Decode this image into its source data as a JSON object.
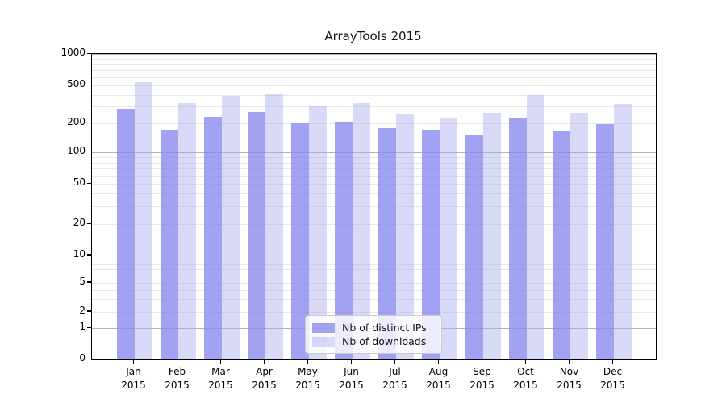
{
  "title": "ArrayTools 2015",
  "colors": {
    "series_ips": "rgba(136,136,238,0.78)",
    "series_downloads": "rgba(170,170,240,0.45)",
    "grid_major": "#b3b3b3",
    "grid_minor": "#e8e8e8",
    "spine": "#000000",
    "legend_border": "#cccccc"
  },
  "chart_data": {
    "type": "bar",
    "title": "ArrayTools 2015",
    "categories": [
      "Jan",
      "Feb",
      "Mar",
      "Apr",
      "May",
      "Jun",
      "Jul",
      "Aug",
      "Sep",
      "Oct",
      "Nov",
      "Dec"
    ],
    "category_sublabel": "2015",
    "series": [
      {
        "name": "Nb of distinct IPs",
        "color": "rgba(136,136,238,0.78)",
        "values": [
          285,
          172,
          235,
          265,
          205,
          207,
          180,
          170,
          150,
          230,
          166,
          195
        ]
      },
      {
        "name": "Nb of downloads",
        "color": "rgba(170,170,240,0.45)",
        "values": [
          540,
          330,
          390,
          405,
          300,
          327,
          252,
          230,
          260,
          396,
          258,
          323
        ]
      }
    ],
    "xlabel": "",
    "ylabel": "",
    "yscale": "symlog",
    "ylim": [
      0,
      1000
    ],
    "y_ticks": [
      0,
      1,
      2,
      5,
      10,
      20,
      50,
      100,
      200,
      500,
      1000
    ],
    "grid": "both",
    "legend_position": "lower center"
  }
}
